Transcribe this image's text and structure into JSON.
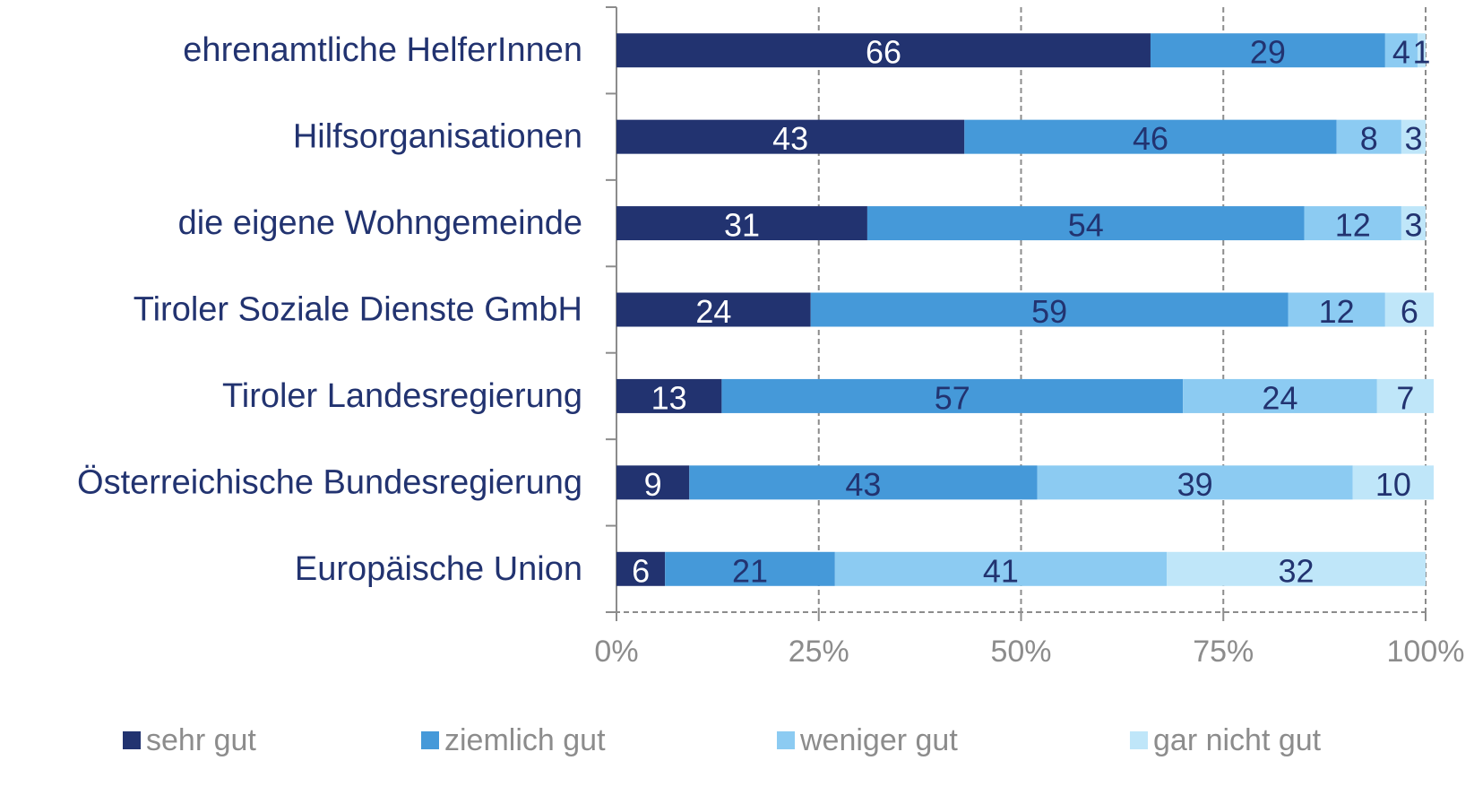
{
  "chart_data": {
    "type": "stacked_bar_horizontal",
    "categories": [
      "ehrenamtliche HelferInnen",
      "Hilfsorganisationen",
      "die eigene Wohngemeinde",
      "Tiroler Soziale Dienste GmbH",
      "Tiroler Landesregierung",
      "Österreichische Bundesregierung",
      "Europäische Union"
    ],
    "series": [
      {
        "name": "sehr gut",
        "color": "#223370",
        "values": [
          66,
          43,
          31,
          24,
          13,
          9,
          6
        ]
      },
      {
        "name": "ziemlich gut",
        "color": "#4599d9",
        "values": [
          29,
          46,
          54,
          59,
          57,
          43,
          21
        ]
      },
      {
        "name": "weniger gut",
        "color": "#8ccbf2",
        "values": [
          4,
          8,
          12,
          12,
          24,
          39,
          41
        ]
      },
      {
        "name": "gar nicht gut",
        "color": "#bfe6f9",
        "values": [
          1,
          3,
          3,
          6,
          7,
          10,
          32
        ]
      }
    ],
    "xlim": [
      0,
      100
    ],
    "xticks": [
      {
        "value": 0,
        "label": "0%"
      },
      {
        "value": 25,
        "label": "25%"
      },
      {
        "value": 50,
        "label": "50%"
      },
      {
        "value": 75,
        "label": "75%"
      },
      {
        "value": 100,
        "label": "100%"
      }
    ],
    "grid": true,
    "legend": "bottom"
  }
}
